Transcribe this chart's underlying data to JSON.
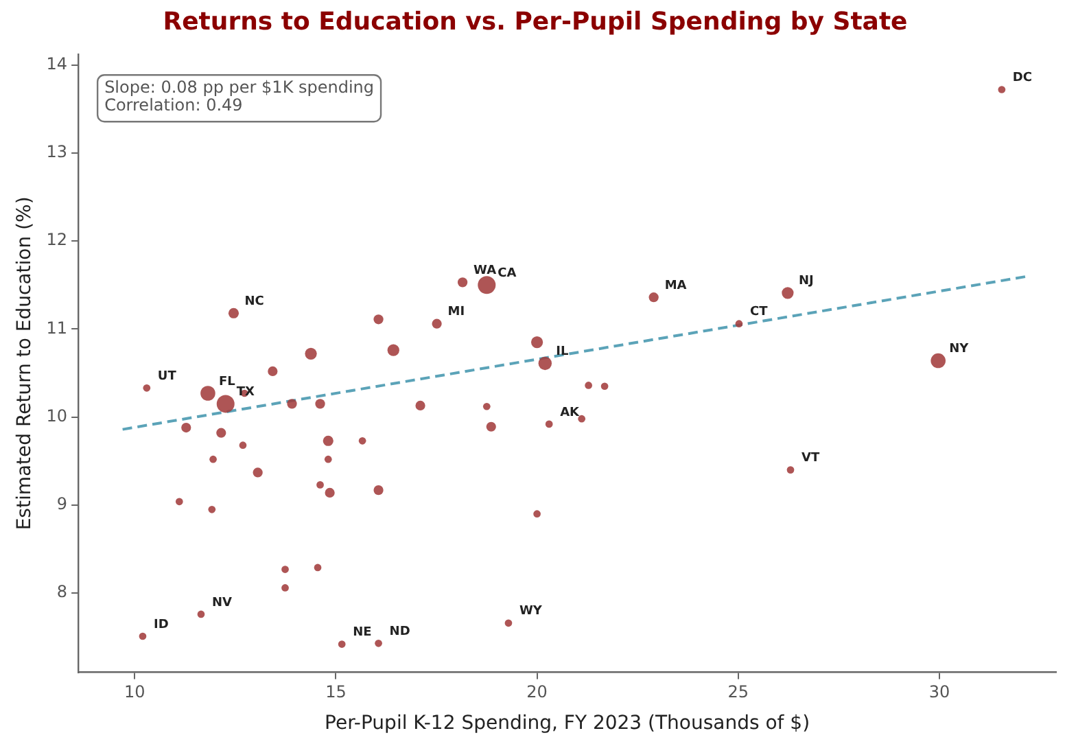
{
  "chart_data": {
    "type": "bubble",
    "title": "Returns to Education vs. Per-Pupil Spending by State",
    "xlabel": "Per-Pupil K-12 Spending, FY 2023 (Thousands of $)",
    "ylabel": "Estimated Return to Education (%)",
    "xlim": [
      8.6,
      32.9
    ],
    "xticks": [
      10,
      15,
      20,
      25,
      30
    ],
    "ylim": [
      7.1,
      14.12
    ],
    "yticks": [
      8,
      9,
      10,
      11,
      12,
      13,
      14
    ],
    "grid": false,
    "legend": false,
    "series": [
      {
        "color": "#a23b3b",
        "x": [
          31.55,
          10.3,
          12.46,
          11.82,
          12.26,
          12.73,
          11.28,
          12.15,
          12.69,
          11.95,
          13.06,
          11.11,
          11.92,
          13.43,
          14.38,
          16.06,
          16.43,
          13.91,
          14.61,
          17.1,
          14.81,
          15.66,
          14.81,
          14.61,
          14.85,
          16.06,
          13.74,
          14.55,
          13.74,
          11.65,
          10.2,
          15.15,
          16.06,
          18.15,
          18.75,
          17.51,
          20.0,
          20.2,
          21.28,
          21.68,
          18.75,
          18.86,
          20.3,
          21.11,
          20.0,
          19.29,
          22.9,
          26.23,
          25.02,
          29.97,
          26.3
        ],
        "values": [
          13.72,
          10.33,
          11.18,
          10.27,
          10.15,
          10.27,
          9.88,
          9.82,
          9.68,
          9.52,
          9.37,
          9.04,
          8.95,
          10.52,
          10.72,
          11.11,
          10.76,
          10.15,
          10.15,
          10.13,
          9.73,
          9.73,
          9.52,
          9.23,
          9.14,
          9.17,
          8.27,
          8.29,
          8.06,
          7.76,
          7.51,
          7.42,
          7.43,
          11.53,
          11.5,
          11.06,
          10.85,
          10.61,
          10.36,
          10.35,
          10.12,
          9.89,
          9.92,
          9.98,
          8.9,
          7.66,
          11.36,
          11.41,
          11.06,
          10.64,
          9.4
        ],
        "sizes": [
          0.17,
          0.17,
          0.34,
          0.69,
          1,
          0.17,
          0.3,
          0.3,
          0.17,
          0.17,
          0.3,
          0.17,
          0.17,
          0.3,
          0.44,
          0.3,
          0.44,
          0.3,
          0.3,
          0.3,
          0.34,
          0.17,
          0.17,
          0.17,
          0.3,
          0.3,
          0.17,
          0.17,
          0.17,
          0.17,
          0.17,
          0.17,
          0.17,
          0.3,
          1,
          0.3,
          0.44,
          0.56,
          0.17,
          0.17,
          0.17,
          0.3,
          0.17,
          0.17,
          0.17,
          0.17,
          0.3,
          0.44,
          0.17,
          0.69,
          0.17
        ]
      },
      {
        "type": "line",
        "color": "#5ba3b8",
        "line_style": "dashed",
        "x": [
          9.7,
          32.2
        ],
        "values": [
          9.86,
          11.6
        ]
      }
    ],
    "annotations": [
      "Slope: 0.08 pp per $1K spending",
      "Correlation: 0.49",
      {
        "text": "DC",
        "x": 31.55,
        "y": 13.72
      },
      {
        "text": "UT",
        "x": 10.3,
        "y": 10.33
      },
      {
        "text": "NC",
        "x": 12.46,
        "y": 11.18
      },
      {
        "text": "FL",
        "x": 11.82,
        "y": 10.27
      },
      {
        "text": "TX",
        "x": 12.26,
        "y": 10.15
      },
      {
        "text": "NV",
        "x": 11.65,
        "y": 7.76
      },
      {
        "text": "ID",
        "x": 10.2,
        "y": 7.51
      },
      {
        "text": "NE",
        "x": 15.15,
        "y": 7.42
      },
      {
        "text": "ND",
        "x": 16.06,
        "y": 7.43
      },
      {
        "text": "WA",
        "x": 18.15,
        "y": 11.53
      },
      {
        "text": "CA",
        "x": 18.75,
        "y": 11.5
      },
      {
        "text": "MI",
        "x": 17.51,
        "y": 11.06
      },
      {
        "text": "IL",
        "x": 20.2,
        "y": 10.61
      },
      {
        "text": "AK",
        "x": 20.3,
        "y": 9.92
      },
      {
        "text": "WY",
        "x": 19.29,
        "y": 7.66
      },
      {
        "text": "MA",
        "x": 22.9,
        "y": 11.36
      },
      {
        "text": "NJ",
        "x": 26.23,
        "y": 11.41
      },
      {
        "text": "CT",
        "x": 25.02,
        "y": 11.06
      },
      {
        "text": "NY",
        "x": 29.97,
        "y": 10.64
      },
      {
        "text": "VT",
        "x": 26.3,
        "y": 9.4
      }
    ]
  }
}
